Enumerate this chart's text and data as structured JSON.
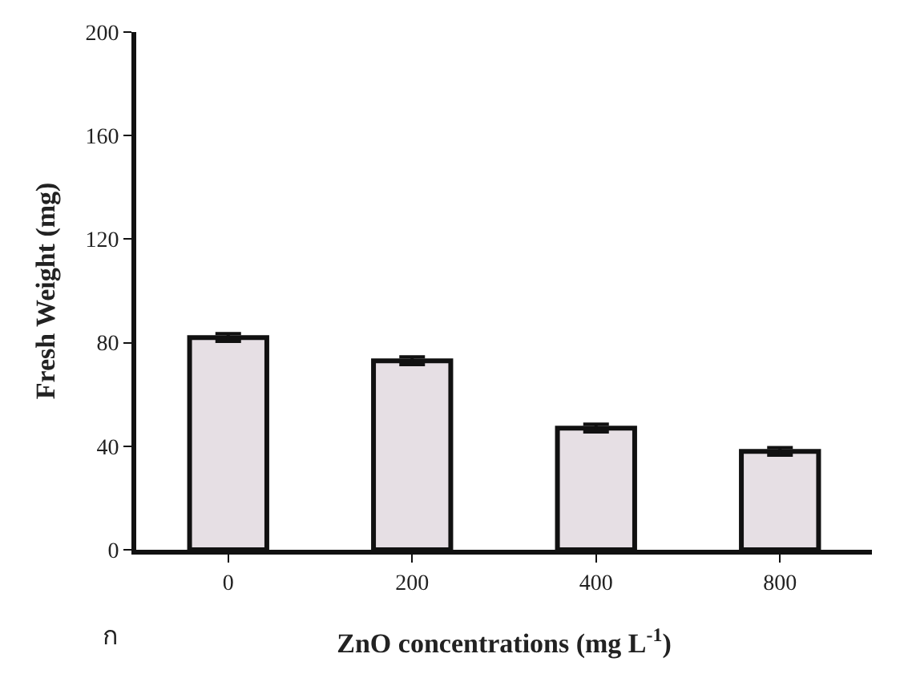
{
  "chart_data": {
    "type": "bar",
    "xlabel": "ZnO concentrations (mg L$^{-1}$)",
    "ylabel": "Fresh Weight (mg)",
    "categories": [
      "0",
      "200",
      "400",
      "800"
    ],
    "values": [
      82,
      73,
      47,
      38
    ],
    "errors": [
      1.5,
      1.5,
      1.5,
      1.5
    ],
    "color": "#e6dfe4",
    "ylim": [
      0,
      200
    ],
    "yticks": [
      0,
      40,
      80,
      120,
      160,
      200
    ],
    "annotations": [
      "ก"
    ]
  }
}
